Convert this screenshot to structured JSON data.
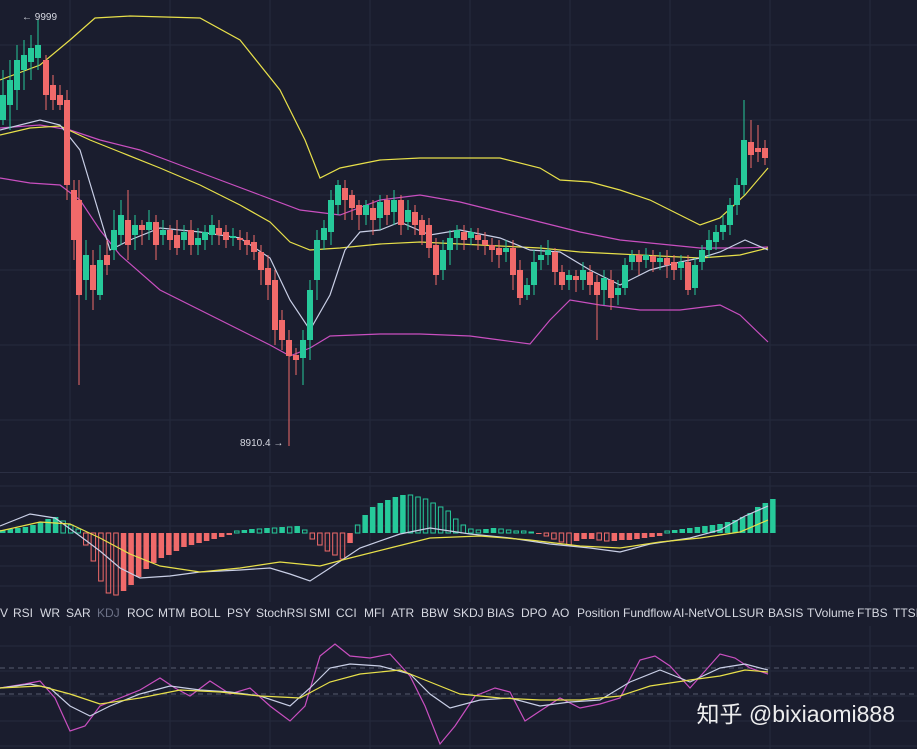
{
  "price_labels": {
    "high": "← 9999",
    "low": "8910.4 →"
  },
  "indicator_tabs": [
    {
      "label": "V",
      "active": true
    },
    {
      "label": "RSI",
      "active": true
    },
    {
      "label": "WR",
      "active": true
    },
    {
      "label": "SAR",
      "active": true
    },
    {
      "label": "KDJ",
      "active": false
    },
    {
      "label": "ROC",
      "active": true
    },
    {
      "label": "MTM",
      "active": true
    },
    {
      "label": "BOLL",
      "active": true
    },
    {
      "label": "PSY",
      "active": true
    },
    {
      "label": "StochRSI",
      "active": true
    },
    {
      "label": "SMI",
      "active": true
    },
    {
      "label": "CCI",
      "active": true
    },
    {
      "label": "MFI",
      "active": true
    },
    {
      "label": "ATR",
      "active": true
    },
    {
      "label": "BBW",
      "active": true
    },
    {
      "label": "SKDJ",
      "active": true
    },
    {
      "label": "BIAS",
      "active": true
    },
    {
      "label": "DPO",
      "active": true
    },
    {
      "label": "AO",
      "active": true
    },
    {
      "label": "Position",
      "active": true
    },
    {
      "label": "Fundflow",
      "active": true
    },
    {
      "label": "AI-NetVOL",
      "active": true
    },
    {
      "label": "LSUR",
      "active": true
    },
    {
      "label": "BASIS",
      "active": true
    },
    {
      "label": "TVolume",
      "active": true
    },
    {
      "label": "FTBS",
      "active": true
    },
    {
      "label": "TTSI",
      "active": true
    }
  ],
  "watermark": "知乎 @bixiaomi888",
  "colors": {
    "up": "#26c99a",
    "down": "#f06a6a",
    "ma_white": "#c9cfe6",
    "ma_yellow": "#e8e04a",
    "ma_pink": "#c94fc0",
    "bg": "#1a1d2e",
    "grid": "#252a3d"
  }
}
